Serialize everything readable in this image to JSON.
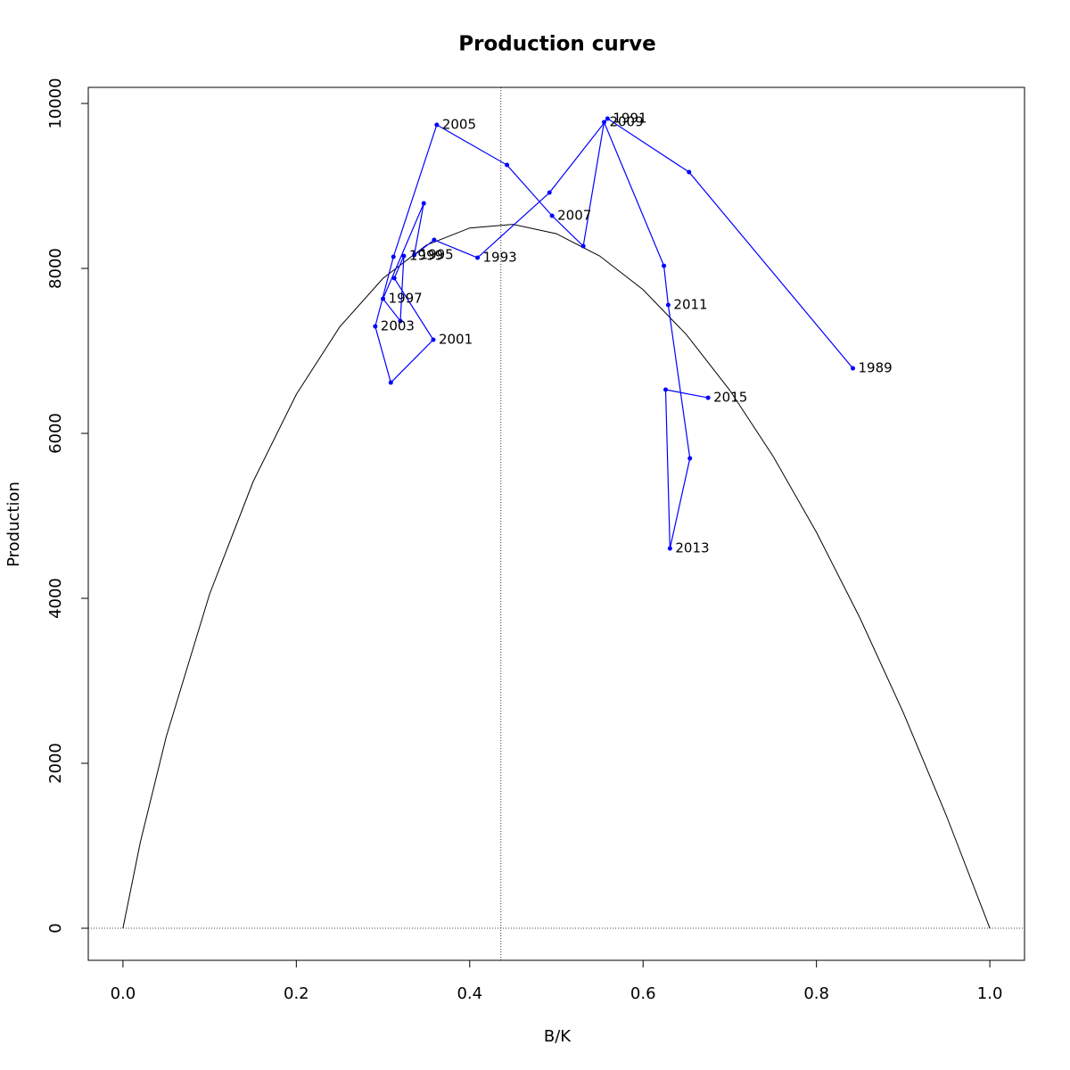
{
  "chart_data": {
    "type": "production",
    "title": "Production curve",
    "x_label": "B/K",
    "y_label": "Production",
    "xlim": [
      -0.04,
      1.04
    ],
    "ylim": [
      -389,
      10195
    ],
    "xticks": [
      {
        "value": 0,
        "label": "0.0"
      },
      0.2,
      0.4,
      0.6,
      0.8,
      {
        "value": 1,
        "label": "1.0"
      }
    ],
    "yticks": [
      0,
      2000,
      4000,
      6000,
      8000,
      10000
    ],
    "vline": 0.436,
    "hline": 0,
    "curve": {
      "color": "#000000",
      "x": [
        0,
        0.02,
        0.05,
        0.1,
        0.15,
        0.2,
        0.25,
        0.3,
        0.35,
        0.4,
        0.45,
        0.5,
        0.55,
        0.6,
        0.65,
        0.7,
        0.75,
        0.8,
        0.85,
        0.9,
        0.95,
        1
      ],
      "values": [
        0,
        1041,
        2325,
        4053,
        5411,
        6473,
        7290,
        7880,
        8282,
        8490,
        8534,
        8421,
        8150,
        7742,
        7197,
        6523,
        5722,
        4800,
        3765,
        2619,
        1361,
        0
      ]
    },
    "trajectory": {
      "color": "#0000ff",
      "x": [
        0.842,
        0.653,
        0.559,
        0.492,
        0.409,
        0.359,
        0.336,
        0.347,
        0.3,
        0.32,
        0.324,
        0.313,
        0.358,
        0.309,
        0.291,
        0.312,
        0.362,
        0.443,
        0.495,
        0.531,
        0.555,
        0.624,
        0.629,
        0.654,
        0.631,
        0.626,
        0.675
      ],
      "values": [
        6789,
        9168,
        9816,
        8919,
        8130,
        8346,
        8162,
        8789,
        7632,
        7362,
        8151,
        7881,
        7135,
        6616,
        7297,
        8141,
        9741,
        9254,
        8638,
        8270,
        9773,
        8032,
        7557,
        5697,
        4605,
        6530,
        6432
      ],
      "labels": [
        "1989",
        null,
        "1991",
        null,
        "1993",
        null,
        "1995",
        null,
        "1997",
        null,
        "1999",
        null,
        "2001",
        null,
        "2003",
        null,
        "2005",
        null,
        "2007",
        null,
        "2009",
        null,
        "2011",
        null,
        "2013",
        null,
        "2015"
      ]
    }
  }
}
